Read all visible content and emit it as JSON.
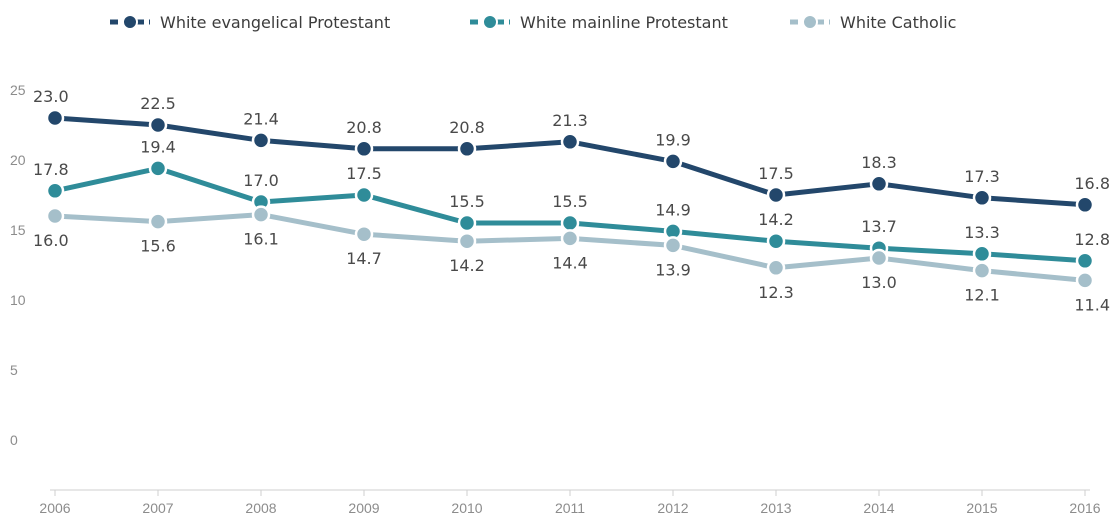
{
  "chart_data": {
    "type": "line",
    "categories": [
      "2006",
      "2007",
      "2008",
      "2009",
      "2010",
      "2011",
      "2012",
      "2013",
      "2014",
      "2015",
      "2016"
    ],
    "ylim": [
      0,
      25
    ],
    "yticks": [
      "0",
      "5",
      "10",
      "15",
      "20",
      "25"
    ],
    "grid": false,
    "legend_position": "top",
    "series": [
      {
        "name": "White evangelical Protestant",
        "color": "#23476b",
        "values": [
          23.0,
          22.5,
          21.4,
          20.8,
          20.8,
          21.3,
          19.9,
          17.5,
          18.3,
          17.3,
          16.8
        ],
        "labels": [
          "23.0",
          "22.5",
          "21.4",
          "20.8",
          "20.8",
          "21.3",
          "19.9",
          "17.5",
          "18.3",
          "17.3",
          "16.8"
        ]
      },
      {
        "name": "White mainline Protestant",
        "color": "#2f8c99",
        "values": [
          17.8,
          19.4,
          17.0,
          17.5,
          15.5,
          15.5,
          14.9,
          14.2,
          13.7,
          13.3,
          12.8
        ],
        "labels": [
          "17.8",
          "19.4",
          "17.0",
          "17.5",
          "15.5",
          "15.5",
          "14.9",
          "14.2",
          "13.7",
          "13.3",
          "12.8"
        ]
      },
      {
        "name": "White Catholic",
        "color": "#a5bfca",
        "values": [
          16.0,
          15.6,
          16.1,
          14.7,
          14.2,
          14.4,
          13.9,
          12.3,
          13.0,
          12.1,
          11.4
        ],
        "labels": [
          "16.0",
          "15.6",
          "16.1",
          "14.7",
          "14.2",
          "14.4",
          "13.9",
          "12.3",
          "13.0",
          "12.1",
          "11.4"
        ]
      }
    ]
  }
}
